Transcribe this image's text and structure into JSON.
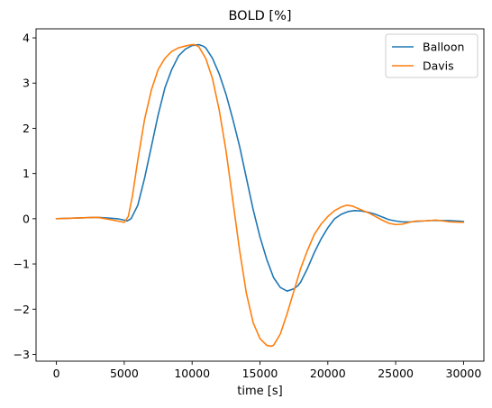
{
  "chart_data": {
    "type": "line",
    "title": "BOLD [%]",
    "xlabel": "time [s]",
    "ylabel": "",
    "xlim": [
      -1500,
      31500
    ],
    "ylim": [
      -3.15,
      4.2
    ],
    "xticks": [
      0,
      5000,
      10000,
      15000,
      20000,
      25000,
      30000
    ],
    "yticks": [
      -3,
      -2,
      -1,
      0,
      1,
      2,
      3,
      4
    ],
    "grid": false,
    "legend_position": "top-right",
    "series": [
      {
        "name": "Balloon",
        "color": "#1f77b4",
        "x": [
          0,
          1000,
          2000,
          3000,
          4000,
          4500,
          5000,
          5200,
          5500,
          6000,
          6500,
          7000,
          7500,
          8000,
          8500,
          9000,
          9500,
          10000,
          10500,
          10800,
          11000,
          11500,
          12000,
          12500,
          13000,
          13500,
          14000,
          14500,
          15000,
          15500,
          16000,
          16500,
          17000,
          17500,
          17800,
          18000,
          18500,
          19000,
          19500,
          20000,
          20500,
          21000,
          21500,
          22000,
          22500,
          23000,
          23500,
          24000,
          24500,
          25000,
          25500,
          26000,
          26500,
          27000,
          27500,
          28000,
          28500,
          29000,
          29500,
          30000
        ],
        "y": [
          0,
          0.01,
          0.02,
          0.03,
          0.01,
          0.0,
          -0.03,
          -0.05,
          0.0,
          0.3,
          0.9,
          1.6,
          2.3,
          2.9,
          3.3,
          3.6,
          3.75,
          3.83,
          3.85,
          3.82,
          3.78,
          3.55,
          3.2,
          2.75,
          2.2,
          1.6,
          0.9,
          0.2,
          -0.4,
          -0.9,
          -1.3,
          -1.52,
          -1.6,
          -1.55,
          -1.48,
          -1.4,
          -1.1,
          -0.75,
          -0.45,
          -0.2,
          0.0,
          0.1,
          0.16,
          0.18,
          0.17,
          0.14,
          0.1,
          0.04,
          -0.02,
          -0.05,
          -0.07,
          -0.07,
          -0.06,
          -0.05,
          -0.04,
          -0.04,
          -0.04,
          -0.04,
          -0.05,
          -0.06
        ]
      },
      {
        "name": "Davis",
        "color": "#ff7f0e",
        "x": [
          0,
          1000,
          2000,
          3000,
          4000,
          4500,
          5000,
          5300,
          5600,
          6000,
          6500,
          7000,
          7500,
          8000,
          8500,
          9000,
          9500,
          10000,
          10200,
          10500,
          11000,
          11500,
          12000,
          12500,
          13000,
          13500,
          14000,
          14500,
          15000,
          15500,
          15800,
          16000,
          16500,
          17000,
          17500,
          18000,
          18500,
          19000,
          19500,
          20000,
          20500,
          21000,
          21400,
          21800,
          22200,
          22600,
          23000,
          23500,
          24000,
          24500,
          25000,
          25500,
          26000,
          26500,
          27000,
          27500,
          28000,
          28500,
          29000,
          30000
        ],
        "y": [
          0,
          0.01,
          0.02,
          0.03,
          -0.02,
          -0.05,
          -0.08,
          0.05,
          0.5,
          1.3,
          2.2,
          2.85,
          3.3,
          3.55,
          3.7,
          3.78,
          3.82,
          3.85,
          3.85,
          3.8,
          3.55,
          3.1,
          2.4,
          1.5,
          0.4,
          -0.7,
          -1.65,
          -2.3,
          -2.65,
          -2.8,
          -2.82,
          -2.8,
          -2.55,
          -2.1,
          -1.6,
          -1.1,
          -0.7,
          -0.35,
          -0.12,
          0.05,
          0.18,
          0.26,
          0.3,
          0.28,
          0.23,
          0.18,
          0.13,
          0.05,
          -0.03,
          -0.1,
          -0.13,
          -0.12,
          -0.08,
          -0.05,
          -0.05,
          -0.04,
          -0.03,
          -0.05,
          -0.07,
          -0.08
        ]
      }
    ]
  }
}
